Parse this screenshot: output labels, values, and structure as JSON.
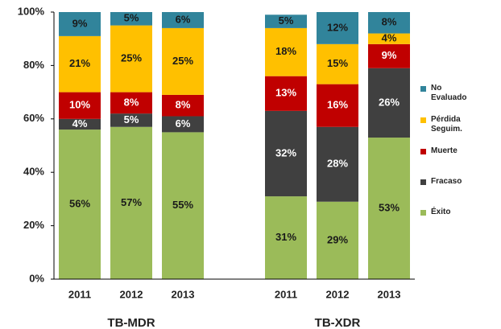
{
  "chart_data": {
    "type": "stacked_bar",
    "categories": [
      "2011",
      "2012",
      "2013",
      null,
      "2011",
      "2012",
      "2013"
    ],
    "group_labels": [
      "TB-MDR",
      "TB-XDR"
    ],
    "series": [
      {
        "name": "Éxito",
        "color": "#9bbb59",
        "label_color": "#1a1a1a",
        "values": [
          56,
          57,
          55,
          null,
          31,
          29,
          53
        ],
        "value_labels": [
          "56%",
          "57%",
          "55%",
          null,
          "31%",
          "29%",
          "53%"
        ]
      },
      {
        "name": "Fracaso",
        "color": "#404040",
        "label_color": "#ffffff",
        "values": [
          4,
          5,
          6,
          null,
          32,
          28,
          26
        ],
        "value_labels": [
          "4%",
          "5%",
          "6%",
          null,
          "32%",
          "28%",
          "26%"
        ]
      },
      {
        "name": "Muerte",
        "color": "#c00000",
        "label_color": "#ffffff",
        "values": [
          10,
          8,
          8,
          null,
          13,
          16,
          9
        ],
        "value_labels": [
          "10%",
          "8%",
          "8%",
          null,
          "13%",
          "16%",
          "9%"
        ]
      },
      {
        "name": "Pérdida Seguim.",
        "color": "#ffc000",
        "label_color": "#1a1a1a",
        "values": [
          21,
          25,
          25,
          null,
          18,
          15,
          4
        ],
        "value_labels": [
          "21%",
          "25%",
          "25%",
          null,
          "18%",
          "15%",
          "4%"
        ]
      },
      {
        "name": "No Evaluado",
        "color": "#31849b",
        "label_color": "#1a1a1a",
        "values": [
          9,
          5,
          6,
          null,
          5,
          12,
          8
        ],
        "value_labels": [
          "9%",
          "5%",
          "6%",
          null,
          "5%",
          "12%",
          "8%"
        ]
      }
    ],
    "ylim": [
      0,
      100
    ],
    "yticks": [
      {
        "value": 0,
        "label": "0%"
      },
      {
        "value": 20,
        "label": "20%"
      },
      {
        "value": 40,
        "label": "40%"
      },
      {
        "value": 60,
        "label": "60%"
      },
      {
        "value": 80,
        "label": "80%"
      },
      {
        "value": 100,
        "label": "100%"
      }
    ],
    "legend": "right"
  }
}
